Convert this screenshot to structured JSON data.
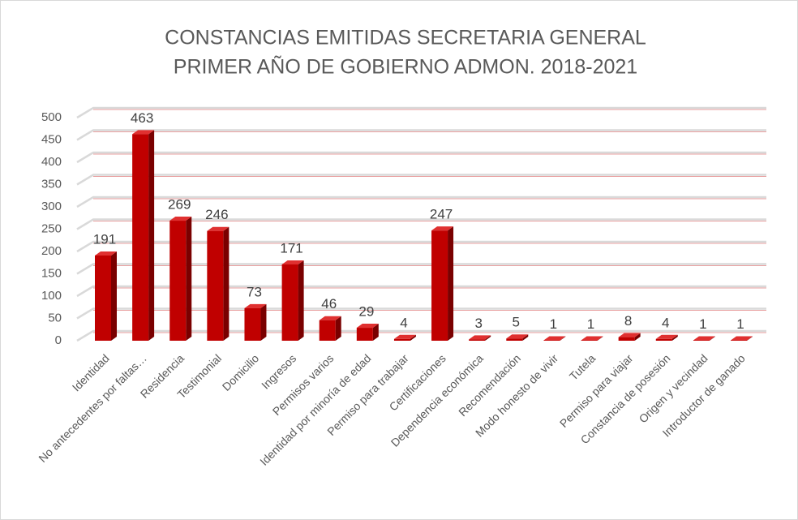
{
  "chart_data": {
    "type": "bar3d",
    "title": [
      "CONSTANCIAS EMITIDAS  SECRETARIA GENERAL",
      "PRIMER AÑO DE GOBIERNO ADMON. 2018-2021"
    ],
    "categories": [
      "Identidad",
      "No antecedentes por faltas…",
      "Residencia",
      "Testimonial",
      "Domicilio",
      "Ingresos",
      "Permisos varios",
      "Identidad por minoría de edad",
      "Permiso para trabajar",
      "Certificaciones",
      "Dependencia económica",
      "Recomendación",
      "Modo honesto de vivir",
      "Tutela",
      "Permiso para viajar",
      "Constancia de posesión",
      "Origen y vecindad",
      "Introductor de ganado"
    ],
    "values": [
      191,
      463,
      269,
      246,
      73,
      171,
      46,
      29,
      4,
      247,
      3,
      5,
      1,
      1,
      8,
      4,
      1,
      1
    ],
    "color": "#c00000",
    "ylim": [
      0,
      500
    ],
    "yticks": [
      0,
      50,
      100,
      150,
      200,
      250,
      300,
      350,
      400,
      450,
      500
    ],
    "grid": true
  }
}
